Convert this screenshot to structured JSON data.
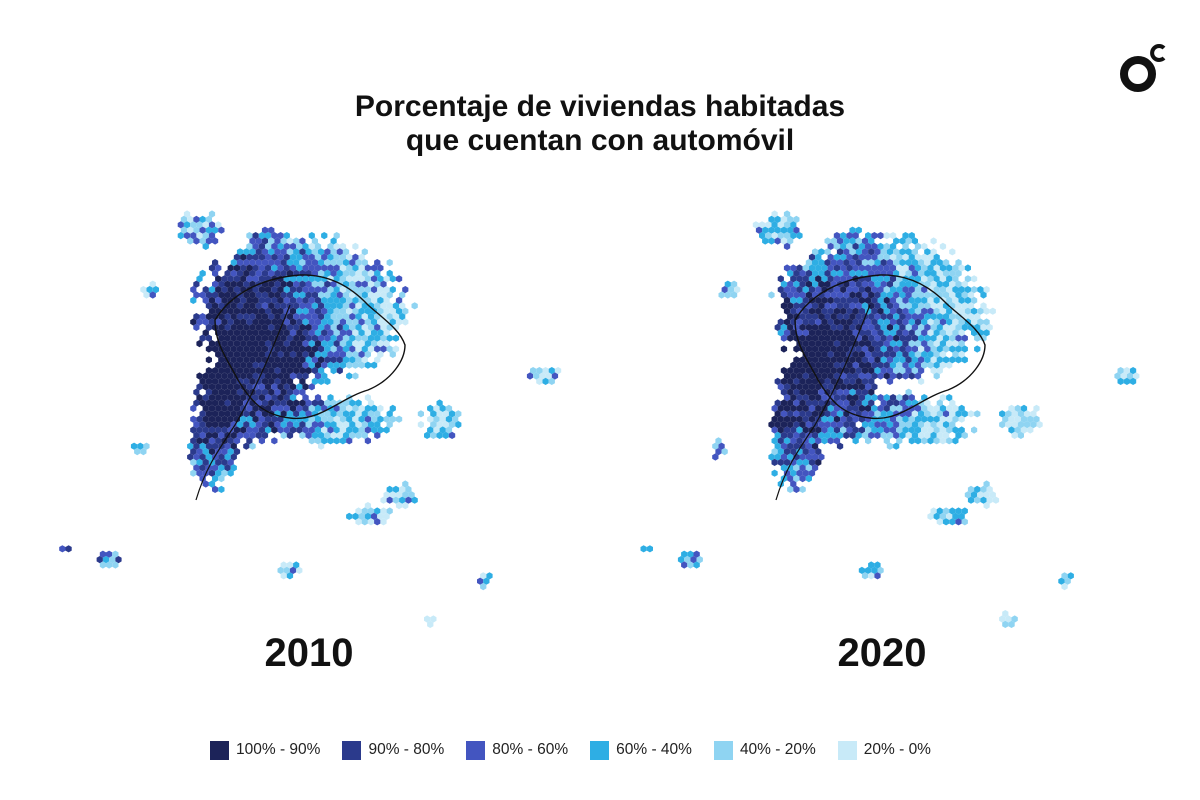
{
  "header": {
    "title_line1": "Porcentaje de viviendas habitadas",
    "title_line2": "que cuentan con automóvil",
    "logo_icon": "oc-logo-icon"
  },
  "maps": [
    {
      "year": "2010",
      "dominant_class_index": 3,
      "central_darkness": 0.9,
      "periphery_darkness": 0.35
    },
    {
      "year": "2020",
      "dominant_class_index": 3,
      "central_darkness": 0.85,
      "periphery_darkness": 0.3
    }
  ],
  "legend": {
    "items": [
      {
        "label": "100% - 90%",
        "color": "#1c2359"
      },
      {
        "label": "90% - 80%",
        "color": "#2b3a8c"
      },
      {
        "label": "80% - 60%",
        "color": "#4355c0"
      },
      {
        "label": "60% - 40%",
        "color": "#2eaee4"
      },
      {
        "label": "40% - 20%",
        "color": "#8fd4f2"
      },
      {
        "label": "20% - 0%",
        "color": "#c8eaf8"
      }
    ]
  }
}
